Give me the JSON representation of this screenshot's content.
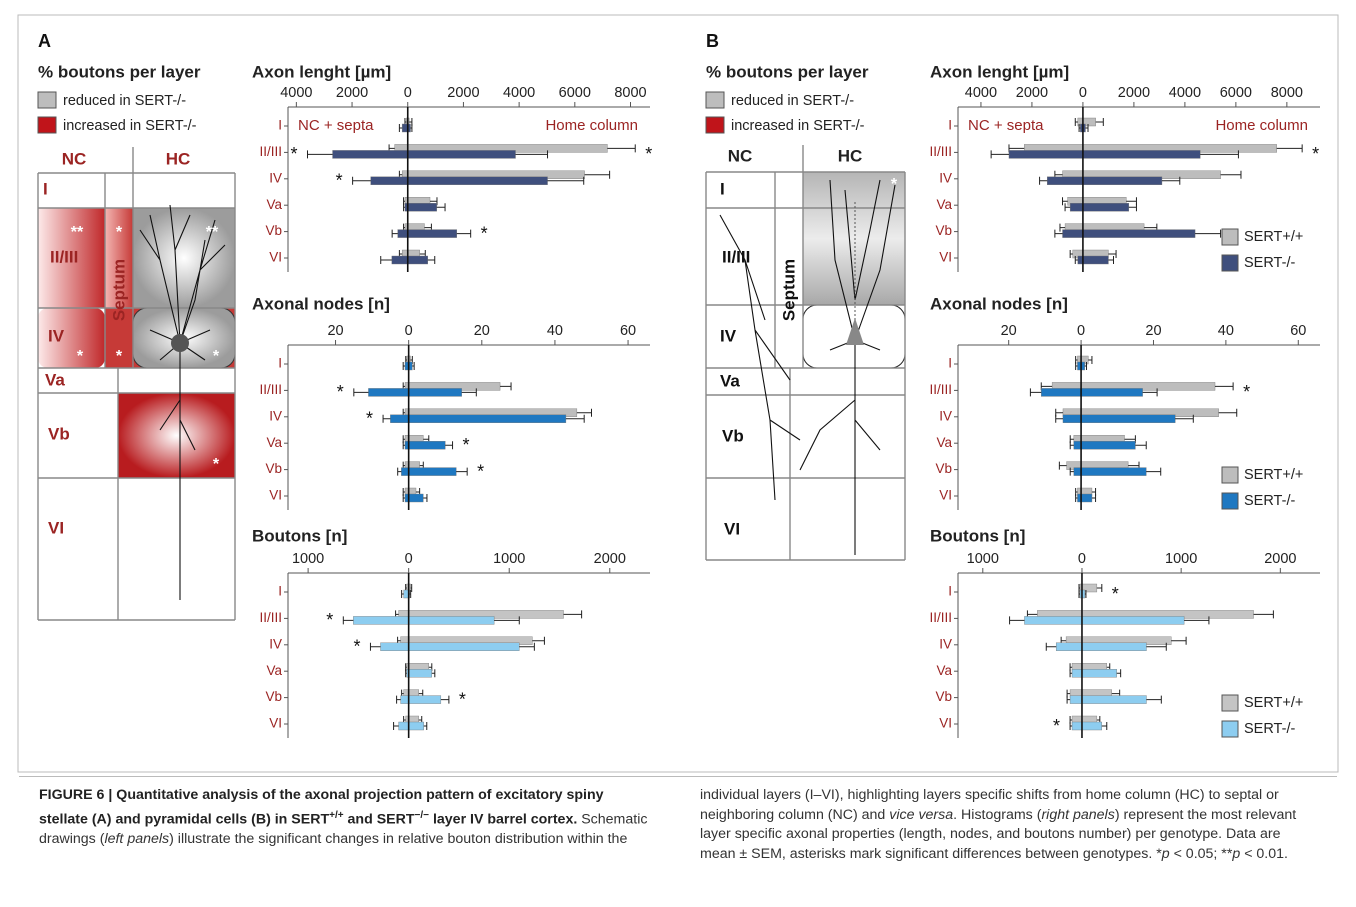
{
  "figure": {
    "panels": [
      {
        "letter": "A",
        "legend_title": "% boutons per layer",
        "legend_items": [
          "reduced in SERT-/-",
          "increased in SERT-/-"
        ],
        "schematic": {
          "columns": [
            "NC",
            "HC"
          ],
          "layers": [
            "I",
            "II/III",
            "IV",
            "Va",
            "Vb",
            "VI"
          ],
          "septum": "Septum",
          "stars": [
            "**",
            "*",
            "**",
            "*",
            "*",
            "*",
            "*"
          ]
        }
      },
      {
        "letter": "B",
        "legend_title": "% boutons per layer",
        "legend_items": [
          "reduced in SERT-/-",
          "increased in SERT-/-"
        ],
        "schematic": {
          "columns": [
            "NC",
            "HC"
          ],
          "layers": [
            "I",
            "II/III",
            "IV",
            "Va",
            "Vb",
            "VI"
          ],
          "septum": "Septum",
          "stars": [
            "*"
          ]
        }
      }
    ],
    "caption": [
      "FIGURE 6 | Quantitative analysis of the axonal projection pattern of excitatory spiny stellate (A) and pyramidal cells (B) in SERT",
      "+/+",
      " and SERT",
      "−/−",
      " layer IV barrel cortex.",
      " Schematic drawings (",
      "left panels",
      ") illustrate the significant changes in relative bouton distribution within the individual layers (I–VI), highlighting layers specific shifts from home column (HC) to septal or neighboring column (NC) and ",
      "vice versa",
      ". Histograms (",
      "right panels",
      ") represent the most relevant layer specific axonal properties (length, nodes, and boutons number) per genotype. Data are mean ± SEM, asterisks mark significant differences between genotypes. *",
      "p",
      " < 0.05; **",
      "p",
      " < 0.01."
    ]
  },
  "chart_data": [
    {
      "type": "bar",
      "orientation": "horizontal",
      "title": "Axon lenght [µm]",
      "categories": [
        "I",
        "II/III",
        "IV",
        "Va",
        "Vb",
        "VI"
      ],
      "annotations": [
        "NC + septa",
        "Home column"
      ],
      "xlim": [
        -4300,
        8700
      ],
      "xticks": [
        {
          "value": -4000,
          "label": "4000"
        },
        {
          "value": -2000,
          "label": "2000"
        },
        0,
        2000,
        4000,
        6000,
        8000
      ],
      "nc_marks": [
        null,
        "*",
        "*",
        null,
        null,
        null
      ],
      "home_marks": [
        null,
        "*",
        null,
        null,
        "*",
        null
      ],
      "series": [
        {
          "color": "#bdbdbd",
          "values": [
            50,
            7170,
            6350,
            800,
            600,
            430
          ],
          "errors": [
            100,
            1000,
            900,
            250,
            250,
            200
          ],
          "nc_values": [
            -50,
            -470,
            -200,
            -100,
            -100,
            -200
          ],
          "nc_errors": [
            50,
            200,
            100,
            50,
            50,
            100
          ]
        },
        {
          "color": "#3f4f7d",
          "values": [
            100,
            3870,
            5020,
            1040,
            1760,
            720
          ],
          "errors": [
            50,
            1150,
            1300,
            300,
            500,
            250
          ],
          "nc_values": [
            -200,
            -2700,
            -1330,
            -100,
            -360,
            -570
          ],
          "nc_errors": [
            100,
            900,
            650,
            50,
            200,
            400
          ]
        }
      ]
    },
    {
      "type": "bar",
      "orientation": "horizontal",
      "title": "Axonal nodes [n]",
      "categories": [
        "I",
        "II/III",
        "IV",
        "Va",
        "Vb",
        "VI"
      ],
      "xlim": [
        -33,
        66
      ],
      "xticks": [
        {
          "value": -20,
          "label": "20"
        },
        0,
        20,
        40,
        60
      ],
      "nc_marks": [
        null,
        "*",
        "*",
        null,
        null,
        null
      ],
      "home_marks": [
        null,
        null,
        null,
        "*",
        "*",
        null
      ],
      "series": [
        {
          "color": "#bdbdbd",
          "values": [
            0.5,
            25,
            46,
            4,
            3,
            2
          ],
          "errors": [
            0.5,
            3,
            4,
            1.5,
            1,
            1
          ],
          "nc_values": [
            -0.5,
            -1,
            -1,
            -1,
            -1,
            -1
          ],
          "nc_errors": [
            0.3,
            0.5,
            0.5,
            0.5,
            0.5,
            0.5
          ]
        },
        {
          "color": "#1f78c1",
          "values": [
            1,
            14.5,
            43,
            10,
            13,
            4
          ],
          "errors": [
            0.5,
            4,
            5,
            2,
            3,
            1
          ],
          "nc_values": [
            -1,
            -11,
            -5,
            -1,
            -2,
            -1
          ],
          "nc_errors": [
            0.5,
            4,
            2,
            0.5,
            1,
            0.5
          ]
        }
      ]
    },
    {
      "type": "bar",
      "orientation": "horizontal",
      "title": "Boutons [n]",
      "categories": [
        "I",
        "II/III",
        "IV",
        "Va",
        "Vb",
        "VI"
      ],
      "xlim": [
        -1200,
        2400
      ],
      "xticks": [
        {
          "value": -1000,
          "label": "1000"
        },
        0,
        1000,
        2000
      ],
      "nc_marks": [
        null,
        "*",
        "*",
        null,
        null,
        null
      ],
      "home_marks": [
        null,
        null,
        null,
        null,
        "*",
        null
      ],
      "series": [
        {
          "color": "#c4c4c4",
          "values": [
            20,
            1540,
            1230,
            200,
            100,
            100
          ],
          "errors": [
            10,
            180,
            120,
            30,
            40,
            30
          ],
          "nc_values": [
            -20,
            -100,
            -80,
            -20,
            -50,
            -30
          ],
          "nc_errors": [
            10,
            30,
            30,
            10,
            20,
            20
          ]
        },
        {
          "color": "#8dcdf0",
          "values": [
            10,
            850,
            1100,
            230,
            320,
            150
          ],
          "errors": [
            10,
            250,
            150,
            30,
            80,
            30
          ],
          "nc_values": [
            -50,
            -550,
            -280,
            -20,
            -80,
            -100
          ],
          "nc_errors": [
            20,
            100,
            100,
            10,
            40,
            50
          ]
        }
      ]
    },
    {
      "type": "bar",
      "orientation": "horizontal",
      "title": "Axon lenght [µm]",
      "categories": [
        "I",
        "II/III",
        "IV",
        "Va",
        "Vb",
        "VI"
      ],
      "annotations": [
        "NC + septa",
        "Home column"
      ],
      "xlim": [
        -4900,
        9300
      ],
      "xticks": [
        {
          "value": -4000,
          "label": "4000"
        },
        {
          "value": -2000,
          "label": "2000"
        },
        0,
        2000,
        4000,
        6000,
        8000
      ],
      "home_marks": [
        null,
        "*",
        null,
        null,
        null,
        null
      ],
      "legend": "lower right",
      "series": [
        {
          "name": "SERT+/+",
          "color": "#bdbdbd",
          "values": [
            500,
            7600,
            5400,
            1700,
            2400,
            1000
          ],
          "errors": [
            300,
            1000,
            800,
            400,
            500,
            300
          ],
          "nc_values": [
            -200,
            -2300,
            -800,
            -600,
            -700,
            -400
          ],
          "nc_errors": [
            100,
            600,
            300,
            200,
            200,
            100
          ]
        },
        {
          "name": "SERT-/-",
          "color": "#3f4f7d",
          "values": [
            100,
            4600,
            3100,
            1800,
            4400,
            1000
          ],
          "errors": [
            100,
            1500,
            700,
            300,
            1000,
            200
          ],
          "nc_values": [
            -100,
            -2900,
            -1400,
            -500,
            -800,
            -200
          ],
          "nc_errors": [
            50,
            700,
            300,
            200,
            300,
            100
          ]
        }
      ]
    },
    {
      "type": "bar",
      "orientation": "horizontal",
      "title": "Axonal nodes [n]",
      "categories": [
        "I",
        "II/III",
        "IV",
        "Va",
        "Vb",
        "VI"
      ],
      "xlim": [
        -34,
        66
      ],
      "xticks": [
        {
          "value": -20,
          "label": "20"
        },
        0,
        20,
        40,
        60
      ],
      "home_marks": [
        null,
        "*",
        null,
        null,
        null,
        null
      ],
      "legend": "lower right",
      "series": [
        {
          "name": "SERT+/+",
          "color": "#bdbdbd",
          "values": [
            2,
            37,
            38,
            12,
            13,
            3
          ],
          "errors": [
            1,
            5,
            5,
            3,
            3,
            1
          ],
          "nc_values": [
            -1,
            -8,
            -5,
            -2,
            -4,
            -1
          ],
          "nc_errors": [
            0.5,
            3,
            2,
            1,
            2,
            0.5
          ]
        },
        {
          "name": "SERT-/-",
          "color": "#1f78c1",
          "values": [
            1,
            17,
            26,
            15,
            18,
            3
          ],
          "errors": [
            0.5,
            4,
            5,
            3,
            4,
            1
          ],
          "nc_values": [
            -1,
            -11,
            -5,
            -2,
            -2,
            -1
          ],
          "nc_errors": [
            0.5,
            3,
            2,
            1,
            1,
            0.5
          ]
        }
      ]
    },
    {
      "type": "bar",
      "orientation": "horizontal",
      "title": "Boutons [n]",
      "categories": [
        "I",
        "II/III",
        "IV",
        "Va",
        "Vb",
        "VI"
      ],
      "xlim": [
        -1250,
        2400
      ],
      "xticks": [
        {
          "value": -1000,
          "label": "1000"
        },
        0,
        1000,
        2000
      ],
      "nc_marks": [
        null,
        null,
        null,
        null,
        null,
        "*"
      ],
      "home_marks": [
        "*",
        null,
        null,
        null,
        null,
        null
      ],
      "legend": "lower right",
      "series": [
        {
          "name": "SERT+/+",
          "color": "#c4c4c4",
          "values": [
            150,
            1730,
            900,
            250,
            300,
            150
          ],
          "errors": [
            50,
            200,
            150,
            30,
            80,
            30
          ],
          "nc_values": [
            -20,
            -450,
            -160,
            -100,
            -120,
            -100
          ],
          "nc_errors": [
            10,
            100,
            50,
            20,
            30,
            20
          ]
        },
        {
          "name": "SERT-/-",
          "color": "#8dcdf0",
          "values": [
            30,
            1030,
            650,
            350,
            650,
            200
          ],
          "errors": [
            10,
            250,
            200,
            40,
            150,
            50
          ],
          "nc_values": [
            -20,
            -580,
            -260,
            -100,
            -120,
            -100
          ],
          "nc_errors": [
            10,
            150,
            100,
            20,
            30,
            20
          ]
        }
      ]
    }
  ]
}
